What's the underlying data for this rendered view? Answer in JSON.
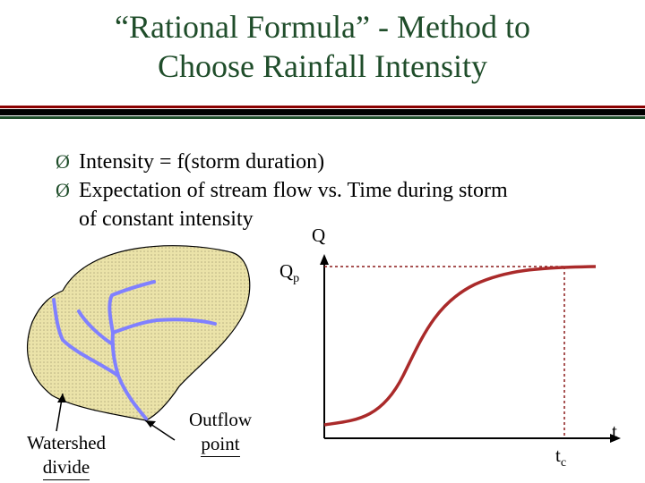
{
  "title": {
    "line1": "“Rational Formula” - Method to",
    "line2": "Choose Rainfall Intensity"
  },
  "bullets": [
    {
      "arrow": "Ø",
      "text": "Intensity = f(storm duration)"
    },
    {
      "arrow": "Ø",
      "text": "Expectation of stream flow vs. Time during storm",
      "cont": "of constant intensity"
    }
  ],
  "graph": {
    "y_axis_label": "Q",
    "peak_label_main": "Q",
    "peak_label_sub": "p",
    "x_axis_label": "t",
    "tc_label_main": "t",
    "tc_label_sub": "c"
  },
  "watershed": {
    "divide_label_1": "Watershed",
    "divide_label_2": "divide",
    "outflow_label_1": "Outflow",
    "outflow_label_2": "point"
  },
  "colors": {
    "title": "#1f4d2a",
    "stream": "#8080ff",
    "watershed_fill": "#e8e0a8",
    "curve": "#aa2a2a",
    "guides": "#8b1a1a"
  }
}
